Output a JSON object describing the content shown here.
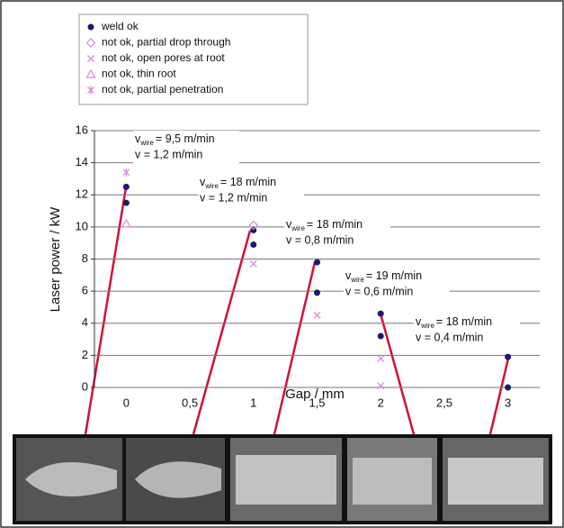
{
  "chart_data": {
    "type": "scatter",
    "xlabel": "Gap / mm",
    "ylabel": "Laser power / kW",
    "xlim": [
      -0.25,
      3.25
    ],
    "ylim": [
      0,
      16
    ],
    "xticks": [
      0,
      {
        "value": 0.5,
        "label": "0,5"
      },
      1,
      {
        "value": 1.5,
        "label": "1,5"
      },
      2,
      {
        "value": 2.5,
        "label": "2,5"
      },
      3
    ],
    "yticks": [
      0,
      2,
      4,
      6,
      8,
      10,
      12,
      14,
      16
    ],
    "grid": true,
    "series": [
      {
        "name": "weld ok",
        "color": "#1b1b6b",
        "marker": "circle",
        "x": [
          0,
          0,
          1,
          1,
          1.5,
          1.5,
          2,
          2,
          3,
          3
        ],
        "values": [
          12.5,
          11.5,
          9.8,
          8.9,
          7.8,
          5.9,
          4.6,
          3.2,
          1.9,
          0
        ]
      },
      {
        "name": "not ok, partial drop through",
        "color": "#d98ad9",
        "marker": "diamond",
        "x": [
          1
        ],
        "values": [
          10.1
        ]
      },
      {
        "name": "not ok, open pores at root",
        "color": "#d98ad9",
        "marker": "x",
        "x": [
          1,
          1.5,
          2,
          2
        ],
        "values": [
          7.7,
          4.5,
          1.8,
          0.1
        ]
      },
      {
        "name": "not ok, thin root",
        "color": "#d98ad9",
        "marker": "triangle",
        "x": [
          0
        ],
        "values": [
          10.2
        ]
      },
      {
        "name": "not ok, partial penetration",
        "color": "#d98ad9",
        "marker": "asterisk",
        "x": [
          0
        ],
        "values": [
          13.4
        ]
      }
    ],
    "annotations": [
      {
        "v": "v",
        "sub": "wire",
        "line1": "= 9,5 m/min",
        "line2": "v = 1,2 m/min"
      },
      {
        "v": "v",
        "sub": "wire",
        "line1": "= 18 m/min",
        "line2": "v = 1,2 m/min"
      },
      {
        "v": "v",
        "sub": "wire",
        "line1": "= 18 m/min",
        "line2": "v = 0,8 m/min"
      },
      {
        "v": "v",
        "sub": "wire",
        "line1": "= 19 m/min",
        "line2": "v = 0,6 m/min"
      },
      {
        "v": "v",
        "sub": "wire",
        "line1": "= 18 m/min",
        "line2": "v = 0,4 m/min"
      }
    ]
  }
}
